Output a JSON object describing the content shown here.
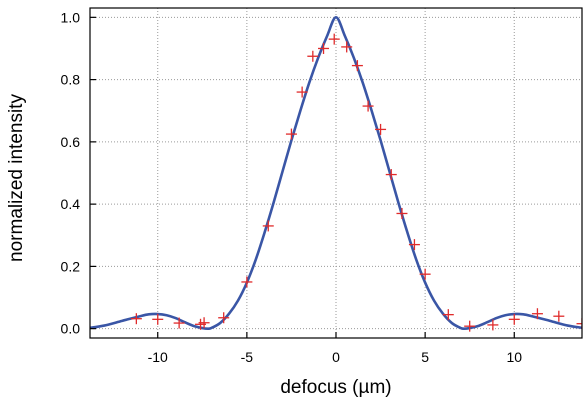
{
  "chart_data": {
    "type": "scatter",
    "title": "",
    "xlabel": "defocus (µm)",
    "ylabel": "normalized intensity",
    "xlim": [
      -13.8,
      13.8
    ],
    "ylim": [
      -0.03,
      1.03
    ],
    "xticks": [
      -10,
      -5,
      0,
      5,
      10
    ],
    "yticks": [
      0.0,
      0.2,
      0.4,
      0.6,
      0.8,
      1.0
    ],
    "xtick_labels": [
      "-10",
      "-5",
      "0",
      "5",
      "10"
    ],
    "ytick_labels": [
      "0.0",
      "0.2",
      "0.4",
      "0.6",
      "0.8",
      "1.0"
    ],
    "grid": true,
    "legend": null,
    "series": [
      {
        "type": "line",
        "color": "#3a56a6",
        "x": [
          -13.8,
          -13.0,
          -12.0,
          -11.0,
          -10.5,
          -10.0,
          -9.5,
          -9.0,
          -8.5,
          -8.0,
          -7.5,
          -7.2,
          -7.0,
          -6.5,
          -6.0,
          -5.5,
          -5.0,
          -4.5,
          -4.0,
          -3.5,
          -3.0,
          -2.5,
          -2.0,
          -1.5,
          -1.0,
          -0.5,
          0.0,
          0.5,
          1.0,
          1.5,
          2.0,
          2.5,
          3.0,
          3.5,
          4.0,
          4.5,
          5.0,
          5.5,
          6.0,
          6.5,
          7.0,
          7.2,
          7.5,
          8.0,
          8.5,
          9.0,
          9.5,
          10.0,
          10.5,
          11.0,
          12.0,
          13.0,
          13.8
        ],
        "y": [
          0.003,
          0.01,
          0.025,
          0.04,
          0.046,
          0.047,
          0.043,
          0.034,
          0.021,
          0.009,
          0.002,
          0.0,
          0.002,
          0.018,
          0.048,
          0.09,
          0.148,
          0.222,
          0.31,
          0.405,
          0.505,
          0.605,
          0.7,
          0.79,
          0.87,
          0.94,
          1.0,
          0.94,
          0.87,
          0.79,
          0.7,
          0.605,
          0.505,
          0.405,
          0.31,
          0.222,
          0.148,
          0.09,
          0.048,
          0.018,
          0.002,
          0.0,
          0.002,
          0.009,
          0.021,
          0.034,
          0.043,
          0.047,
          0.046,
          0.04,
          0.025,
          0.01,
          0.003
        ]
      },
      {
        "type": "scatter",
        "marker": "+",
        "color": "#e02b2b",
        "x": [
          -11.2,
          -10.0,
          -8.8,
          -7.6,
          -7.4,
          -6.3,
          -5.0,
          -3.8,
          -2.5,
          -1.9,
          -1.3,
          -0.7,
          -0.1,
          0.6,
          1.2,
          1.8,
          2.5,
          3.1,
          3.7,
          4.4,
          5.0,
          6.3,
          7.5,
          8.8,
          10.0,
          11.3,
          12.5,
          13.8
        ],
        "y": [
          0.032,
          0.03,
          0.018,
          0.014,
          0.019,
          0.035,
          0.15,
          0.33,
          0.625,
          0.76,
          0.875,
          0.9,
          0.93,
          0.905,
          0.845,
          0.715,
          0.64,
          0.495,
          0.37,
          0.27,
          0.175,
          0.045,
          0.008,
          0.012,
          0.03,
          0.048,
          0.04,
          0.016
        ]
      }
    ]
  }
}
